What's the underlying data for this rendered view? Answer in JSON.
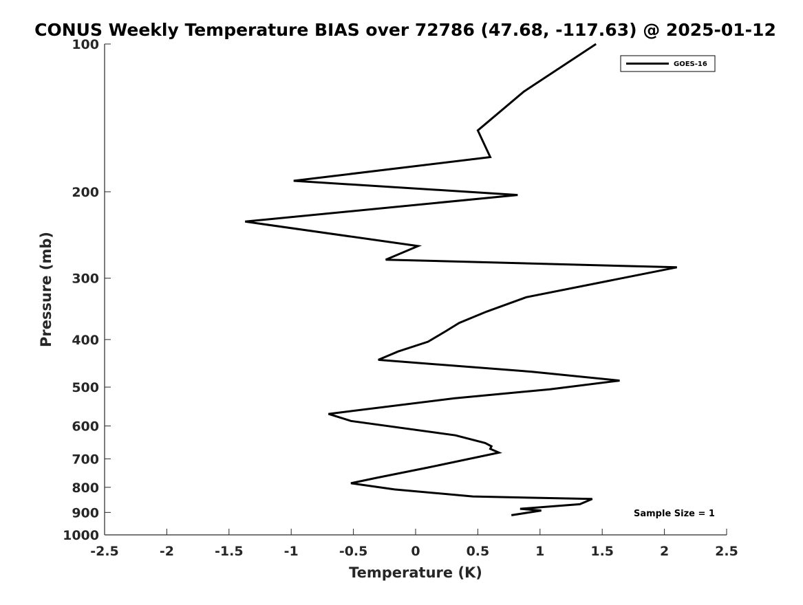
{
  "chart_data": {
    "type": "line",
    "title": "CONUS Weekly Temperature BIAS over 72786 (47.68, -117.63) @ 2025-01-12",
    "xlabel": "Temperature (K)",
    "ylabel": "Pressure (mb)",
    "xlim": [
      -2.5,
      2.5
    ],
    "ylim": [
      100,
      1000
    ],
    "y_scale": "log",
    "y_reversed": true,
    "x_ticks": [
      -2.5,
      -2,
      -1.5,
      -1,
      -0.5,
      0,
      0.5,
      1,
      1.5,
      2,
      2.5
    ],
    "x_tick_labels": [
      "-2.5",
      "-2",
      "-1.5",
      "-1",
      "-0.5",
      "0",
      "0.5",
      "1",
      "1.5",
      "2",
      "2.5"
    ],
    "y_ticks": [
      100,
      200,
      300,
      400,
      500,
      600,
      700,
      800,
      900,
      1000
    ],
    "y_tick_labels": [
      "100",
      "200",
      "300",
      "400",
      "500",
      "600",
      "700",
      "800",
      "900",
      "1000"
    ],
    "grid": false,
    "legend_position": "top-right",
    "series": [
      {
        "name": "GOES-16",
        "color": "#000000",
        "x": [
          1.45,
          0.87,
          0.5,
          0.6,
          -0.98,
          0.82,
          -1.37,
          0.02,
          -0.24,
          2.1,
          0.89,
          0.57,
          0.35,
          0.24,
          0.1,
          -0.14,
          -0.3,
          0.93,
          1.64,
          1.08,
          0.31,
          -0.7,
          -0.52,
          0.32,
          0.56,
          0.61,
          0.6,
          0.67,
          0.09,
          -0.31,
          -0.52,
          -0.17,
          0.46,
          1.42,
          1.32,
          0.84,
          1.01,
          0.77
        ],
        "y": [
          100,
          125,
          150,
          170,
          190,
          203,
          230,
          258,
          275,
          285,
          328,
          351,
          370,
          385,
          404,
          423,
          440,
          465,
          485,
          505,
          527,
          567,
          586,
          627,
          650,
          660,
          668,
          680,
          730,
          765,
          785,
          808,
          835,
          845,
          866,
          885,
          892,
          912
        ]
      }
    ],
    "annotations": [
      "Sample Size = 1"
    ]
  }
}
